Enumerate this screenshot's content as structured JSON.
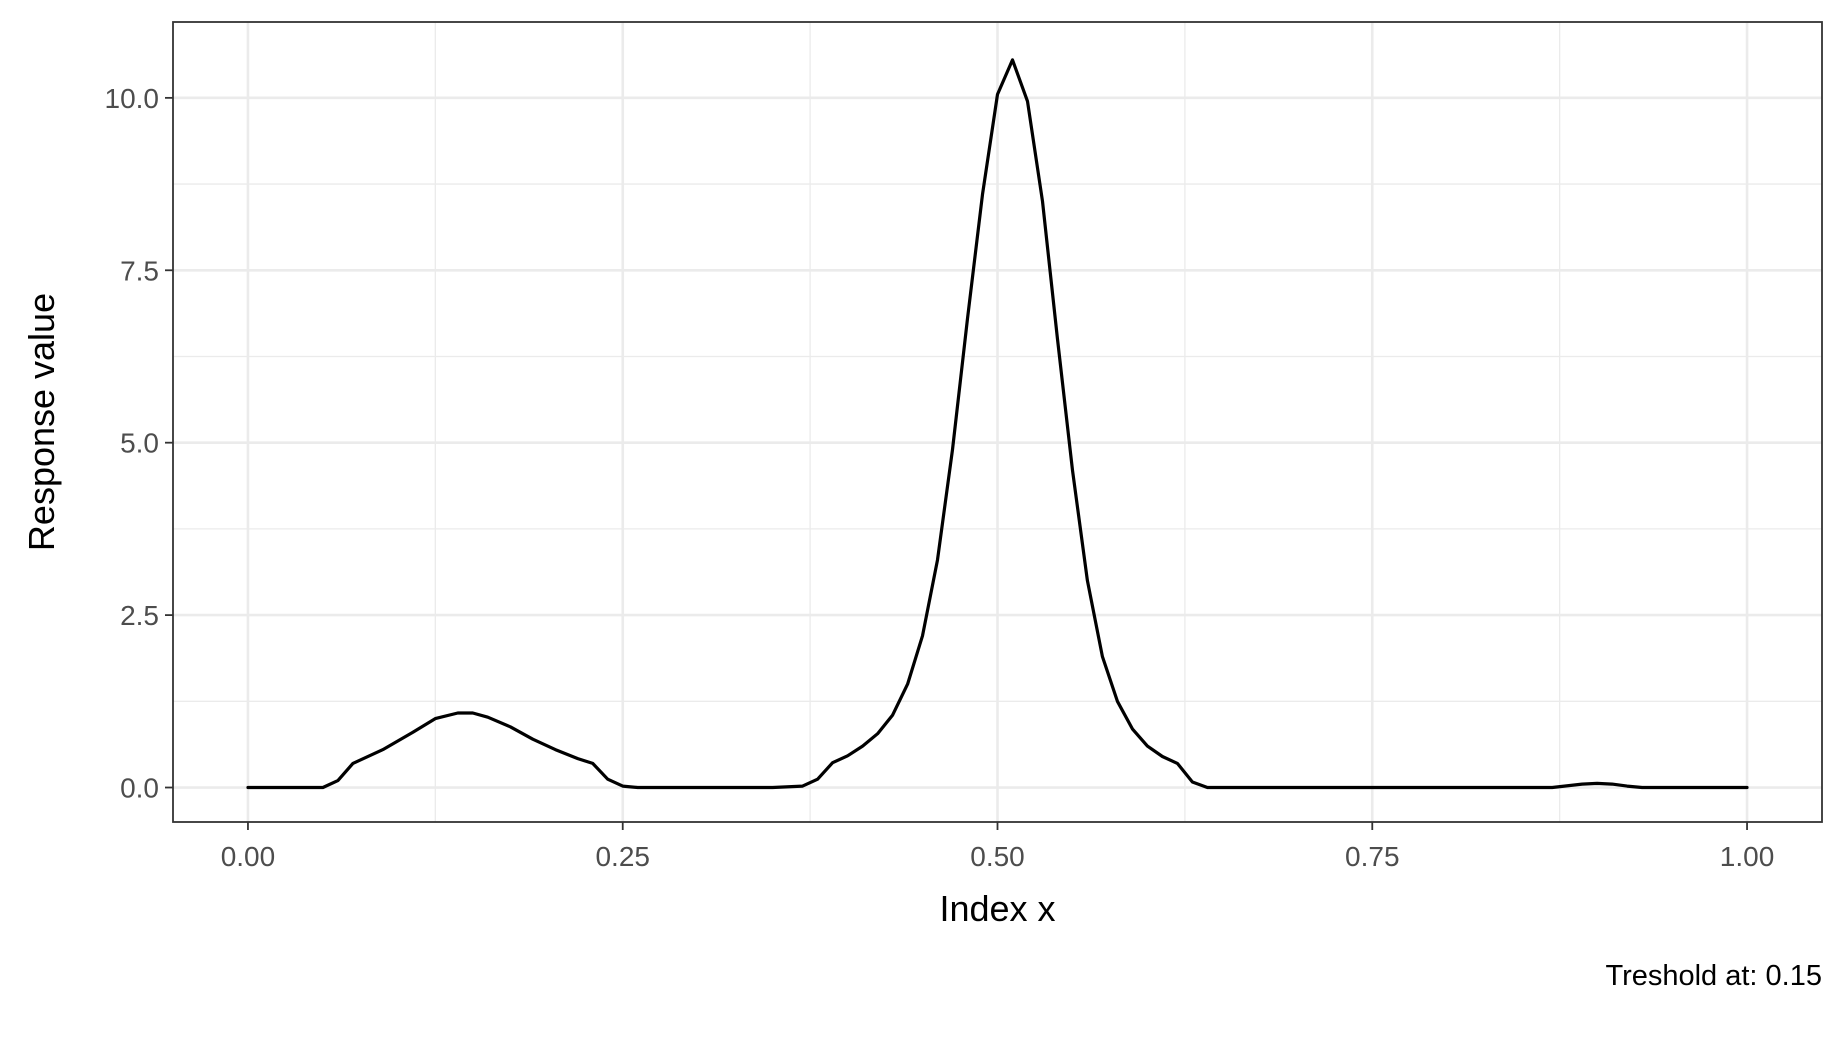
{
  "chart_data": {
    "type": "line",
    "xlabel": "Index x",
    "ylabel": "Response value",
    "caption": "Treshold at: 0.15",
    "xlim": [
      -0.05,
      1.05
    ],
    "ylim": [
      -0.5,
      11.1
    ],
    "x_ticks": [
      0.0,
      0.25,
      0.5,
      0.75,
      1.0
    ],
    "x_tick_labels": [
      "0.00",
      "0.25",
      "0.50",
      "0.75",
      "1.00"
    ],
    "y_ticks": [
      0.0,
      2.5,
      5.0,
      7.5,
      10.0
    ],
    "y_tick_labels": [
      "0.0",
      "2.5",
      "5.0",
      "7.5",
      "10.0"
    ],
    "grid": true,
    "series": [
      {
        "color": "#000000",
        "x": [
          0.0,
          0.05,
          0.06,
          0.07,
          0.09,
          0.11,
          0.125,
          0.14,
          0.15,
          0.16,
          0.175,
          0.19,
          0.205,
          0.22,
          0.23,
          0.24,
          0.25,
          0.26,
          0.3,
          0.35,
          0.37,
          0.38,
          0.39,
          0.4,
          0.41,
          0.42,
          0.43,
          0.44,
          0.45,
          0.46,
          0.47,
          0.48,
          0.49,
          0.5,
          0.51,
          0.52,
          0.53,
          0.54,
          0.55,
          0.56,
          0.57,
          0.58,
          0.59,
          0.6,
          0.61,
          0.62,
          0.63,
          0.64,
          0.7,
          0.8,
          0.87,
          0.89,
          0.9,
          0.91,
          0.92,
          0.93,
          1.0
        ],
        "y": [
          0.0,
          0.0,
          0.1,
          0.35,
          0.55,
          0.8,
          1.0,
          1.08,
          1.08,
          1.02,
          0.88,
          0.7,
          0.55,
          0.42,
          0.35,
          0.12,
          0.02,
          0.0,
          0.0,
          0.0,
          0.02,
          0.12,
          0.36,
          0.46,
          0.6,
          0.78,
          1.05,
          1.5,
          2.2,
          3.3,
          4.9,
          6.8,
          8.6,
          10.05,
          10.55,
          9.95,
          8.5,
          6.5,
          4.6,
          3.0,
          1.9,
          1.25,
          0.85,
          0.6,
          0.45,
          0.35,
          0.08,
          0.0,
          0.0,
          0.0,
          0.0,
          0.05,
          0.06,
          0.05,
          0.02,
          0.0,
          0.0
        ]
      }
    ]
  }
}
